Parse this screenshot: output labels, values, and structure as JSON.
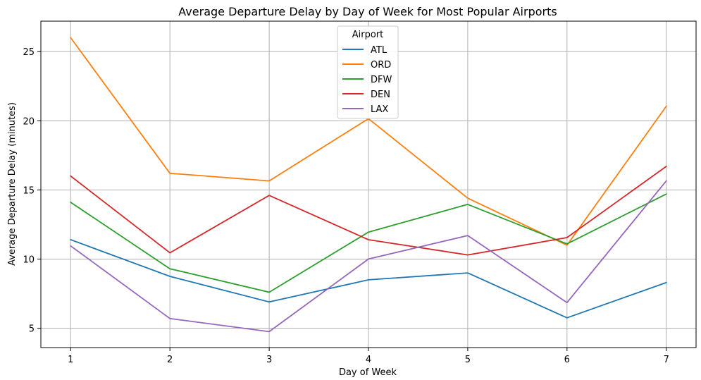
{
  "chart_data": {
    "type": "line",
    "title": "Average Departure Delay by Day of Week for Most Popular Airports",
    "xlabel": "Day of Week",
    "ylabel": "Average Departure Delay (minutes)",
    "x": [
      1,
      2,
      3,
      4,
      5,
      6,
      7
    ],
    "x_ticks": [
      "1",
      "2",
      "3",
      "4",
      "5",
      "6",
      "7"
    ],
    "xlim": [
      0.7,
      7.3
    ],
    "y_ticks": [
      "5",
      "10",
      "15",
      "20",
      "25"
    ],
    "ylim": [
      3.6,
      27.2
    ],
    "grid": true,
    "legend": {
      "title": "Airport",
      "placement": "top-center"
    },
    "series": [
      {
        "name": "ATL",
        "color": "#1f77b4",
        "values": [
          11.4,
          8.75,
          6.9,
          8.5,
          9.0,
          5.75,
          8.3
        ]
      },
      {
        "name": "ORD",
        "color": "#ff7f0e",
        "values": [
          26.0,
          16.2,
          15.65,
          20.15,
          14.4,
          11.0,
          21.05
        ]
      },
      {
        "name": "DFW",
        "color": "#2ca02c",
        "values": [
          14.1,
          9.3,
          7.6,
          11.95,
          13.95,
          11.1,
          14.7
        ]
      },
      {
        "name": "DEN",
        "color": "#d62728",
        "values": [
          16.0,
          10.45,
          14.6,
          11.4,
          10.3,
          11.55,
          16.7
        ]
      },
      {
        "name": "LAX",
        "color": "#9467bd",
        "values": [
          10.95,
          5.7,
          4.75,
          10.0,
          11.7,
          6.85,
          15.65
        ]
      }
    ]
  }
}
